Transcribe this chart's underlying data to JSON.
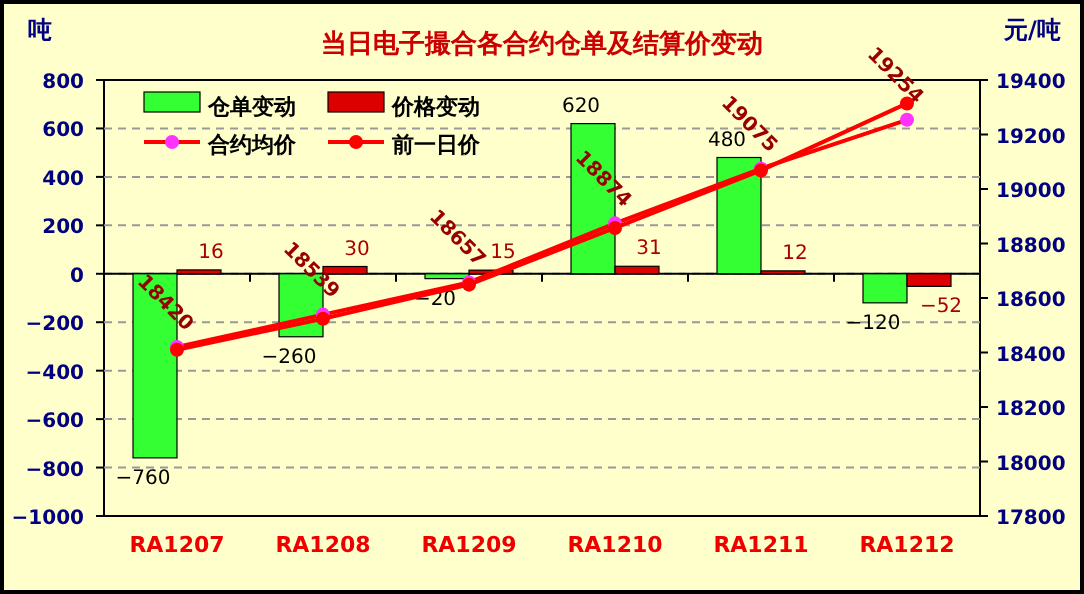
{
  "chart_data": {
    "type": "bar",
    "title": "当日电子撮合各合约仓单及结算价变动",
    "ylabel": "吨",
    "y2label": "元/吨",
    "categories": [
      "RA1207",
      "RA1208",
      "RA1209",
      "RA1210",
      "RA1211",
      "RA1212"
    ],
    "series": [
      {
        "name": "仓单变动",
        "color": "#33ff33",
        "values": [
          -760,
          -260,
          -20,
          620,
          480,
          -120
        ],
        "data_labels": true
      },
      {
        "name": "价格变动",
        "color": "#dd0000",
        "values": [
          16,
          30,
          15,
          31,
          12,
          -52
        ],
        "data_labels": true
      },
      {
        "name": "合约均价",
        "type": "line",
        "axis": "y2",
        "color": "#ff0000",
        "colors": [
          "#ff33ff",
          "#ff33ff",
          "#ff33ff",
          "#ff33ff",
          "#ff33ff",
          "#ff33ff"
        ],
        "values": [
          18420,
          18539,
          18657,
          18874,
          19075,
          19254
        ],
        "data_labels": true
      },
      {
        "name": "前一日价",
        "type": "line",
        "axis": "y2",
        "color": "#ff0000",
        "values": [
          18410,
          18524,
          18649,
          18857,
          19068,
          19314
        ]
      }
    ],
    "ylim": [
      -1000,
      800
    ],
    "yticks": [
      -1000,
      -800,
      -600,
      -400,
      -200,
      0,
      200,
      400,
      600,
      800
    ],
    "y2lim": [
      17800,
      19400
    ],
    "y2ticks": [
      17800,
      18000,
      18200,
      18400,
      18600,
      18800,
      19000,
      19200,
      19400
    ],
    "grid": "y",
    "legend": "top left",
    "marker": "circle"
  }
}
